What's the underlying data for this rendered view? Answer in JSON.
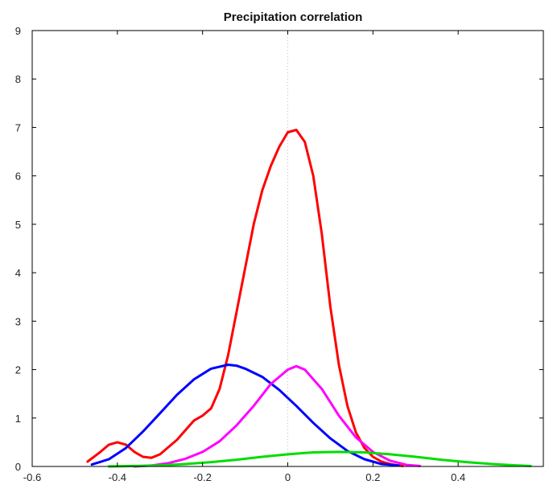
{
  "chart_data": {
    "type": "line",
    "title": "Precipitation correlation",
    "xlabel": "",
    "ylabel": "",
    "xlim": [
      -0.6,
      0.6
    ],
    "ylim": [
      0,
      9
    ],
    "xticks": [
      -0.6,
      -0.4,
      -0.2,
      0,
      0.2,
      0.4
    ],
    "xtick_labels": [
      "-0.6",
      "-0.4",
      "-0.2",
      "0",
      "0.2",
      "0.4"
    ],
    "yticks": [
      0,
      1,
      2,
      3,
      4,
      5,
      6,
      7,
      8,
      9
    ],
    "ytick_labels": [
      "0",
      "1",
      "2",
      "3",
      "4",
      "5",
      "6",
      "7",
      "8",
      "9"
    ],
    "grid": false,
    "reference_line": {
      "x": 0,
      "style": "dotted",
      "color": "#bbbbbb"
    },
    "series": [
      {
        "color": "#ff0000",
        "x": [
          -0.47,
          -0.44,
          -0.42,
          -0.4,
          -0.38,
          -0.36,
          -0.34,
          -0.32,
          -0.3,
          -0.28,
          -0.26,
          -0.24,
          -0.22,
          -0.2,
          -0.18,
          -0.16,
          -0.14,
          -0.12,
          -0.1,
          -0.08,
          -0.06,
          -0.04,
          -0.02,
          0.0,
          0.02,
          0.04,
          0.06,
          0.08,
          0.1,
          0.12,
          0.14,
          0.16,
          0.18,
          0.2,
          0.22,
          0.24,
          0.26,
          0.27
        ],
        "y": [
          0.1,
          0.3,
          0.45,
          0.5,
          0.45,
          0.3,
          0.2,
          0.18,
          0.25,
          0.4,
          0.55,
          0.75,
          0.95,
          1.05,
          1.2,
          1.6,
          2.3,
          3.2,
          4.1,
          5.0,
          5.7,
          6.2,
          6.6,
          6.9,
          6.95,
          6.7,
          6.0,
          4.8,
          3.3,
          2.1,
          1.25,
          0.7,
          0.38,
          0.2,
          0.1,
          0.05,
          0.02,
          0.01
        ]
      },
      {
        "color": "#0000ff",
        "x": [
          -0.46,
          -0.42,
          -0.38,
          -0.34,
          -0.3,
          -0.26,
          -0.22,
          -0.18,
          -0.14,
          -0.12,
          -0.1,
          -0.06,
          -0.02,
          0.02,
          0.06,
          0.1,
          0.14,
          0.18,
          0.22,
          0.26
        ],
        "y": [
          0.04,
          0.15,
          0.38,
          0.72,
          1.1,
          1.48,
          1.8,
          2.02,
          2.1,
          2.08,
          2.02,
          1.85,
          1.58,
          1.25,
          0.9,
          0.58,
          0.32,
          0.15,
          0.05,
          0.02
        ]
      },
      {
        "color": "#ff00ff",
        "x": [
          -0.36,
          -0.32,
          -0.28,
          -0.24,
          -0.2,
          -0.16,
          -0.12,
          -0.08,
          -0.04,
          0.0,
          0.02,
          0.04,
          0.08,
          0.12,
          0.16,
          0.2,
          0.24,
          0.28,
          0.31
        ],
        "y": [
          0.0,
          0.02,
          0.07,
          0.16,
          0.3,
          0.52,
          0.85,
          1.25,
          1.7,
          2.0,
          2.07,
          2.0,
          1.6,
          1.05,
          0.6,
          0.3,
          0.12,
          0.03,
          0.01
        ]
      },
      {
        "color": "#00dd00",
        "x": [
          -0.42,
          -0.36,
          -0.3,
          -0.24,
          -0.18,
          -0.12,
          -0.06,
          0.0,
          0.06,
          0.12,
          0.18,
          0.24,
          0.3,
          0.36,
          0.42,
          0.48,
          0.54,
          0.57
        ],
        "y": [
          0.0,
          0.01,
          0.02,
          0.05,
          0.09,
          0.14,
          0.2,
          0.25,
          0.29,
          0.3,
          0.29,
          0.25,
          0.2,
          0.14,
          0.09,
          0.05,
          0.02,
          0.01
        ]
      }
    ]
  }
}
